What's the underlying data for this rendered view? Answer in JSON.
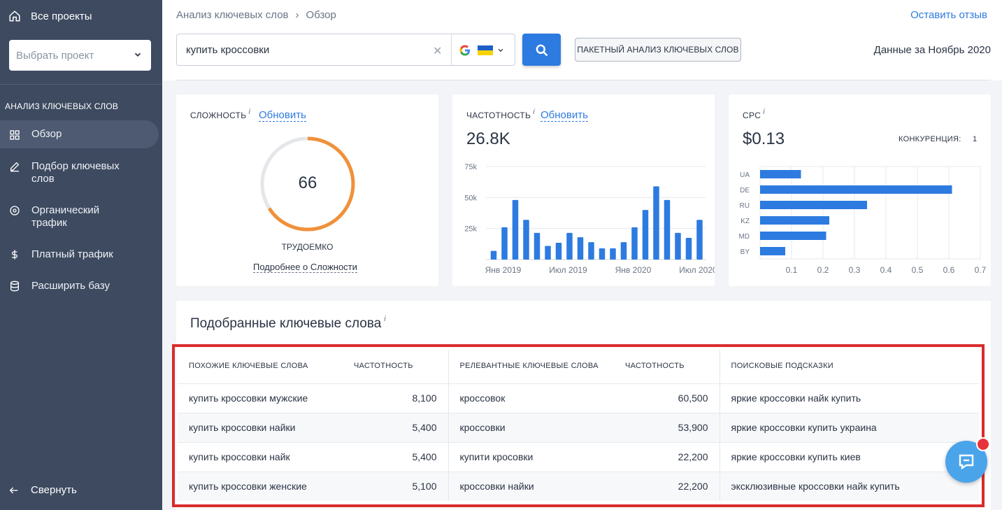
{
  "sidebar": {
    "all_projects": "Все проекты",
    "project_select_placeholder": "Выбрать проект",
    "section_title": "АНАЛИЗ КЛЮЧЕВЫХ СЛОВ",
    "items": [
      {
        "label": "Обзор",
        "icon": "grid-icon",
        "active": true
      },
      {
        "label": "Подбор ключевых слов",
        "icon": "pencil-icon"
      },
      {
        "label": "Органический трафик",
        "icon": "target-icon"
      },
      {
        "label": "Платный трафик",
        "icon": "dollar-icon"
      },
      {
        "label": "Расширить базу",
        "icon": "database-icon"
      }
    ],
    "collapse": "Свернуть"
  },
  "header": {
    "breadcrumb": [
      "Анализ ключевых слов",
      "Обзор"
    ],
    "breadcrumb_sep": "›",
    "feedback": "Оставить отзыв",
    "search_value": "купить кроссовки",
    "batch_button": "ПАКЕТНЫЙ АНАЛИЗ КЛЮЧЕВЫХ СЛОВ",
    "data_date": "Данные за Ноябрь 2020"
  },
  "difficulty": {
    "title": "СЛОЖНОСТЬ",
    "info": "i",
    "refresh": "Обновить",
    "value": "66",
    "score": 66,
    "label": "ТРУДОЕМКО",
    "more": "Подробнее о Сложности"
  },
  "volume": {
    "title": "ЧАСТОТНОСТЬ",
    "info": "i",
    "refresh": "Обновить",
    "value": "26.8K"
  },
  "cpc": {
    "title": "CPC",
    "info": "i",
    "value": "$0.13",
    "competition_label": "КОНКУРЕНЦИЯ:",
    "competition_value": "1"
  },
  "chart_data": [
    {
      "type": "bar",
      "yticks": [
        "75k",
        "50k",
        "25k"
      ],
      "ytick_values": [
        75000,
        50000,
        25000
      ],
      "xtick_labels": [
        "Янв 2019",
        "Июл 2019",
        "Янв 2020",
        "Июл 2020"
      ],
      "xtick_index": [
        1,
        7,
        13,
        19
      ],
      "ylim": [
        0,
        75000
      ],
      "values": [
        7000,
        26000,
        48000,
        32000,
        21500,
        11000,
        13500,
        21500,
        18000,
        14000,
        9000,
        9000,
        14000,
        26000,
        40000,
        59000,
        48000,
        21500,
        17500,
        32000
      ],
      "color": "#2d7be0"
    },
    {
      "type": "bar",
      "orientation": "horizontal",
      "categories": [
        "UA",
        "DE",
        "RU",
        "KZ",
        "MD",
        "BY"
      ],
      "values": [
        0.13,
        0.61,
        0.34,
        0.22,
        0.21,
        0.08
      ],
      "xticks": [
        "0.1",
        "0.2",
        "0.3",
        "0.4",
        "0.5",
        "0.6",
        "0.7"
      ],
      "xtick_values": [
        0.1,
        0.2,
        0.3,
        0.4,
        0.5,
        0.6,
        0.7
      ],
      "xlim": [
        0,
        0.7
      ],
      "color": "#2d7be0"
    }
  ],
  "keywords": {
    "title": "Подобранные ключевые слова",
    "info": "i",
    "headers": [
      "ПОХОЖИЕ КЛЮЧЕВЫЕ СЛОВА",
      "ЧАСТОТНОСТЬ",
      "РЕЛЕВАНТНЫЕ КЛЮЧЕВЫЕ СЛОВА",
      "ЧАСТОТНОСТЬ",
      "ПОИСКОВЫЕ ПОДСКАЗКИ"
    ],
    "rows": [
      [
        "купить кроссовки мужские",
        "8,100",
        "кроссовок",
        "60,500",
        "яркие кроссовки найк купить"
      ],
      [
        "купить кроссовки найки",
        "5,400",
        "кроссовки",
        "53,900",
        "яркие кроссовки купить украина"
      ],
      [
        "купить кроссовки найк",
        "5,400",
        "купити кросовки",
        "22,200",
        "яркие кроссовки купить киев"
      ],
      [
        "купить кроссовки женские",
        "5,100",
        "кроссовки найки",
        "22,200",
        "эксклюзивные кроссовки найк купить"
      ]
    ]
  },
  "colors": {
    "sidebar": "#3d4a60",
    "accent": "#2d7be0",
    "gauge": "#f0913a",
    "highlight_frame": "#d92c2c",
    "chat": "#4aa4ea"
  }
}
